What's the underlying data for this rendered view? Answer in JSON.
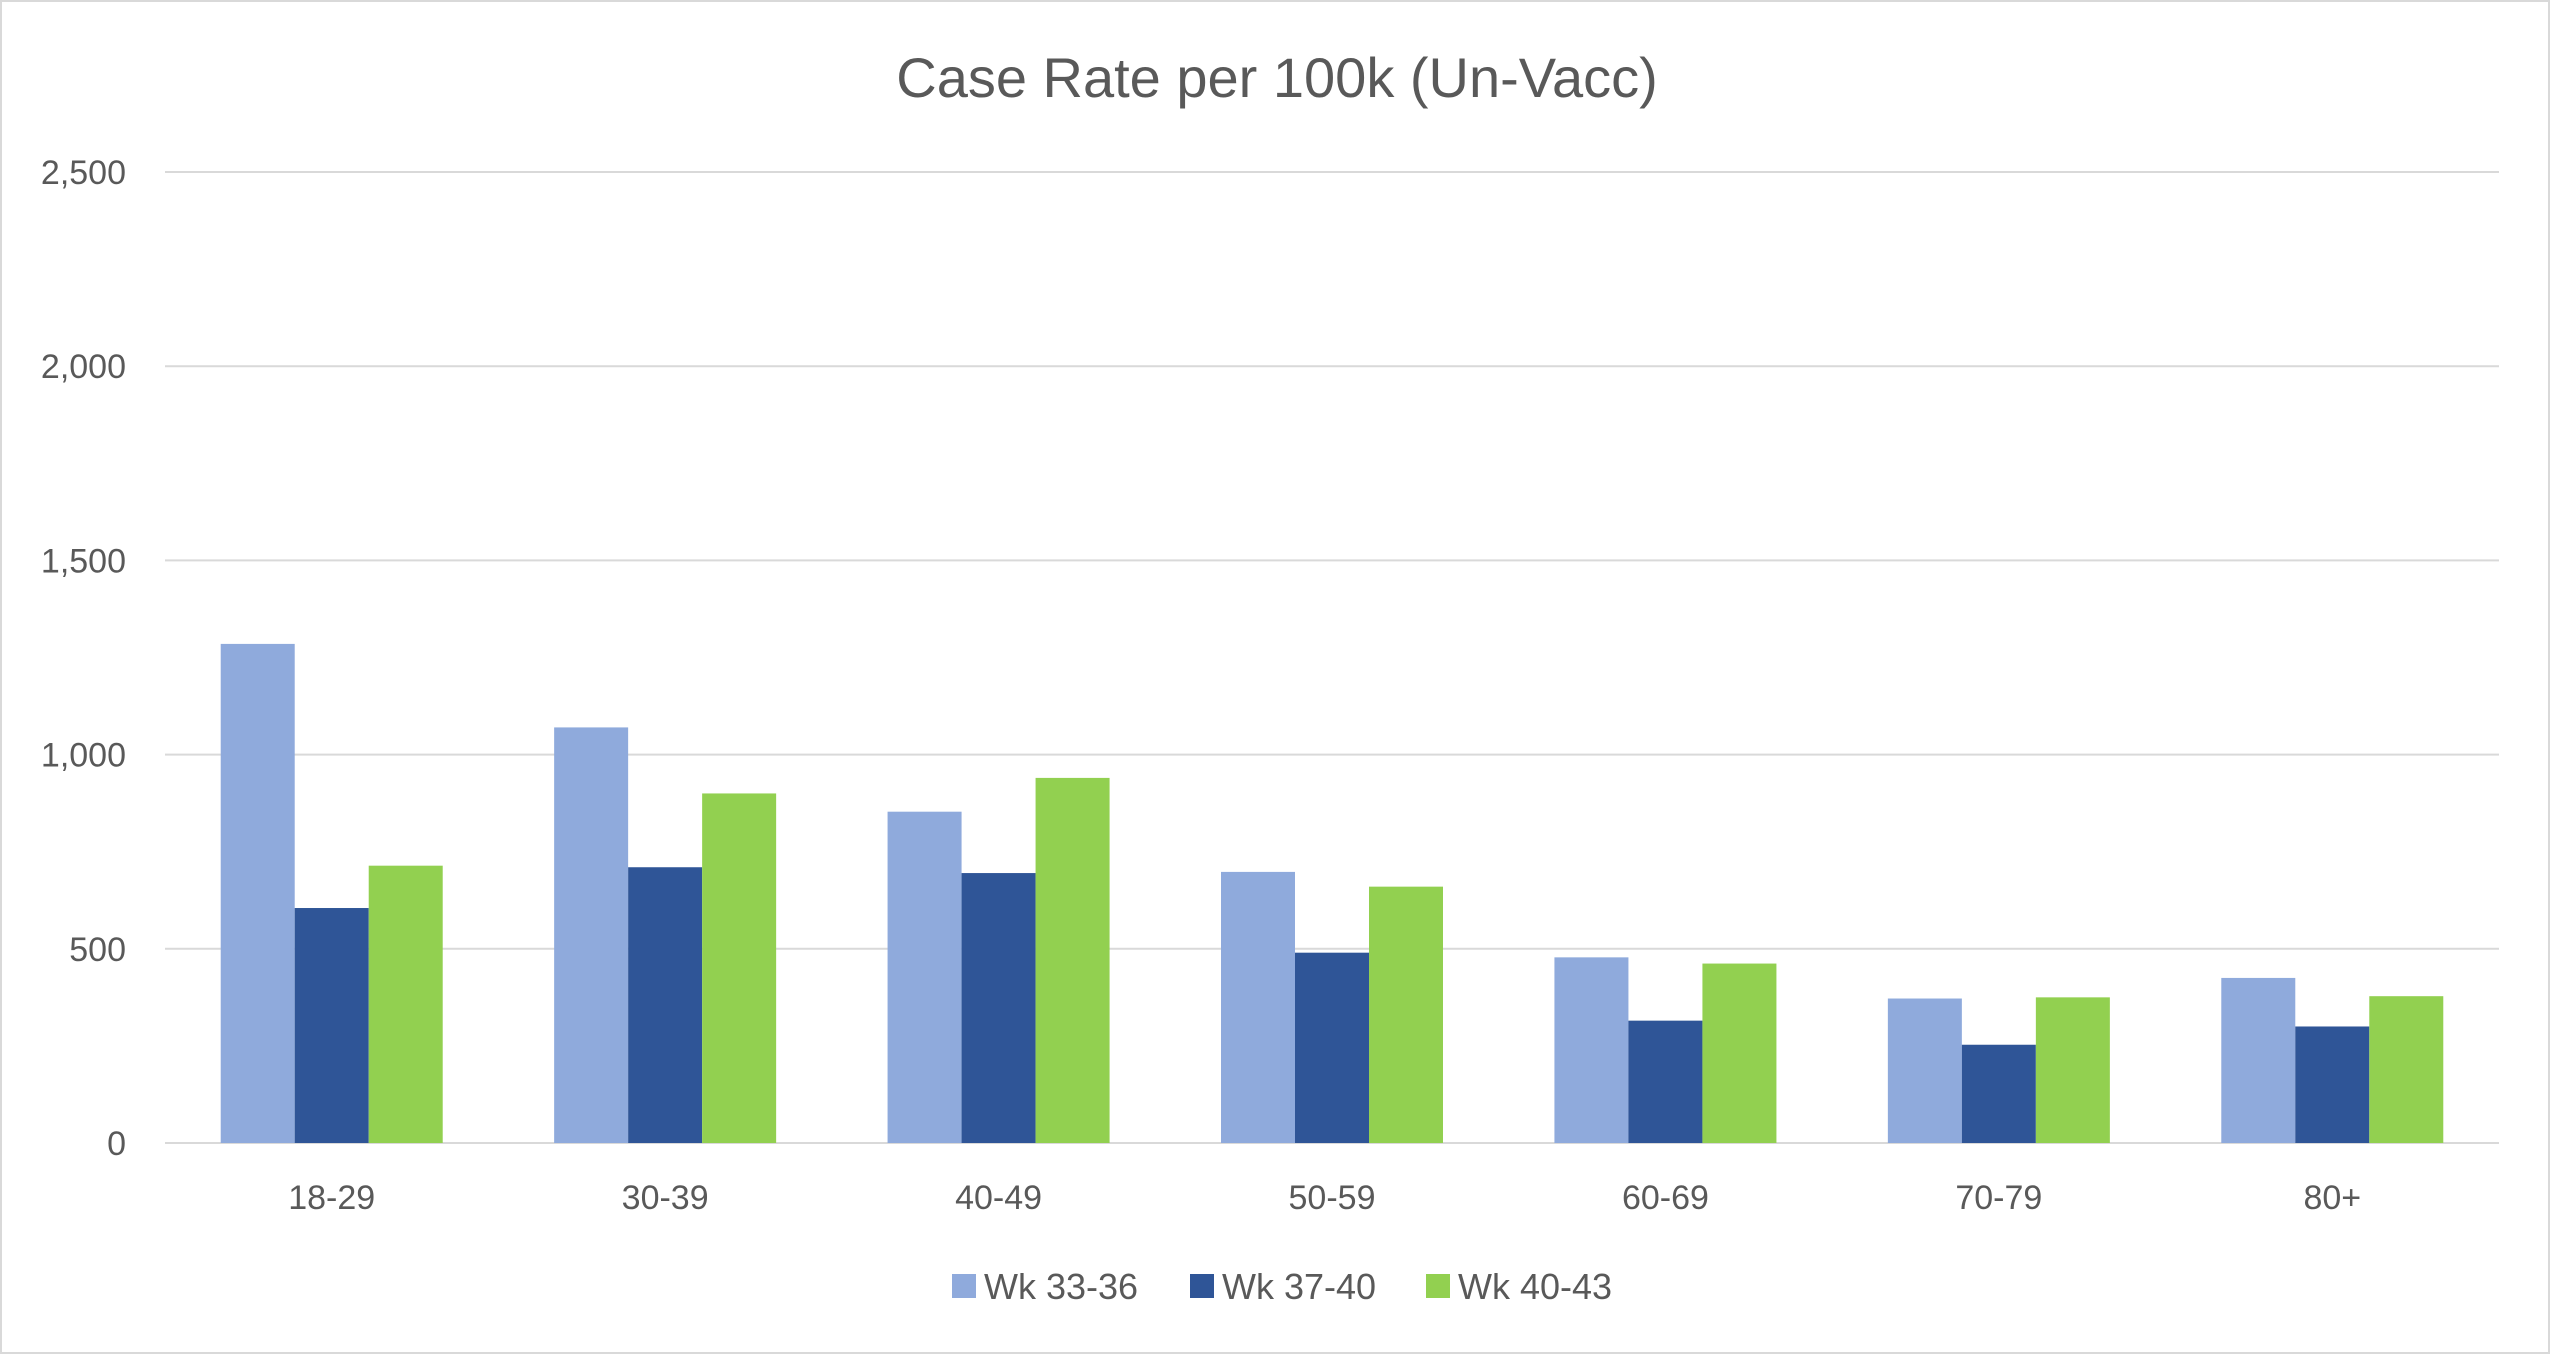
{
  "chart_data": {
    "type": "bar",
    "title": "Case Rate per 100k (Un-Vacc)",
    "xlabel": "",
    "ylabel": "",
    "categories": [
      "18-29",
      "30-39",
      "40-49",
      "50-59",
      "60-69",
      "70-79",
      "80+"
    ],
    "series": [
      {
        "name": "Wk 33-36",
        "color": "#8FAADC",
        "values": [
          1285,
          1070,
          853,
          698,
          478,
          372,
          425
        ]
      },
      {
        "name": "Wk 37-40",
        "color": "#2F5597",
        "values": [
          605,
          710,
          695,
          490,
          315,
          253,
          300
        ]
      },
      {
        "name": "Wk 40-43",
        "color": "#92D050",
        "values": [
          714,
          900,
          940,
          660,
          462,
          375,
          378
        ]
      }
    ],
    "ylim": [
      0,
      2500
    ],
    "yticks": [
      0,
      500,
      1000,
      1500,
      2000,
      2500
    ],
    "ytick_labels": [
      "0",
      "500",
      "1,000",
      "1,500",
      "2,000",
      "2,500"
    ],
    "grid": true,
    "legend_position": "bottom"
  }
}
